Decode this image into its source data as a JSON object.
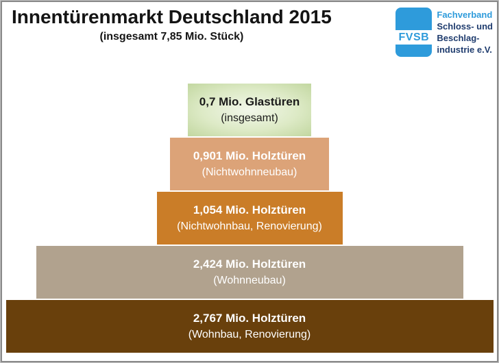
{
  "header": {
    "title": "Innentürenmarkt Deutschland 2015",
    "subtitle": "(insgesamt 7,85 Mio. Stück)"
  },
  "logo": {
    "acronym": "FVSB",
    "line1": "Fachverband",
    "line2": "Schloss- und",
    "line3": "Beschlag-",
    "line4": "industrie e.V.",
    "blue": "#2E9BDB",
    "navy": "#1F3C6E"
  },
  "chart_data": {
    "type": "bar",
    "variant": "pyramid",
    "orientation": "horizontal-centered",
    "title": "Innentürenmarkt Deutschland 2015",
    "subtitle": "(insgesamt 7,85 Mio. Stück)",
    "total_value_mio": 7.85,
    "unit": "Mio. Stück",
    "legend": "none",
    "grid": false,
    "bars": [
      {
        "value": 0.7,
        "line1": "0,7 Mio. Glastüren",
        "line2": "(insgesamt)",
        "category": "Glastüren (insgesamt)",
        "color": "#c2d7a0",
        "gradient": [
          "#f2f7ea",
          "#ddeac6",
          "#c2d7a0"
        ],
        "text_color": "#1a1a1a"
      },
      {
        "value": 0.901,
        "line1": "0,901 Mio. Holztüren",
        "line2": "(Nichtwohnneubau)",
        "category": "Holztüren (Nichtwohnneubau)",
        "color": "#dca378",
        "text_color": "#ffffff"
      },
      {
        "value": 1.054,
        "line1": "1,054 Mio. Holztüren",
        "line2": "(Nichtwohnbau, Renovierung)",
        "category": "Holztüren (Nichtwohnbau, Renovierung)",
        "color": "#ca7d28",
        "text_color": "#ffffff"
      },
      {
        "value": 2.424,
        "line1": "2,424 Mio. Holztüren",
        "line2": "(Wohnneubau)",
        "category": "Holztüren (Wohnneubau)",
        "color": "#b1a28e",
        "text_color": "#ffffff"
      },
      {
        "value": 2.767,
        "line1": "2,767 Mio. Holztüren",
        "line2": "(Wohnbau, Renovierung)",
        "category": "Holztüren (Wohnbau, Renovierung)",
        "color": "#69400c",
        "text_color": "#ffffff"
      }
    ]
  }
}
